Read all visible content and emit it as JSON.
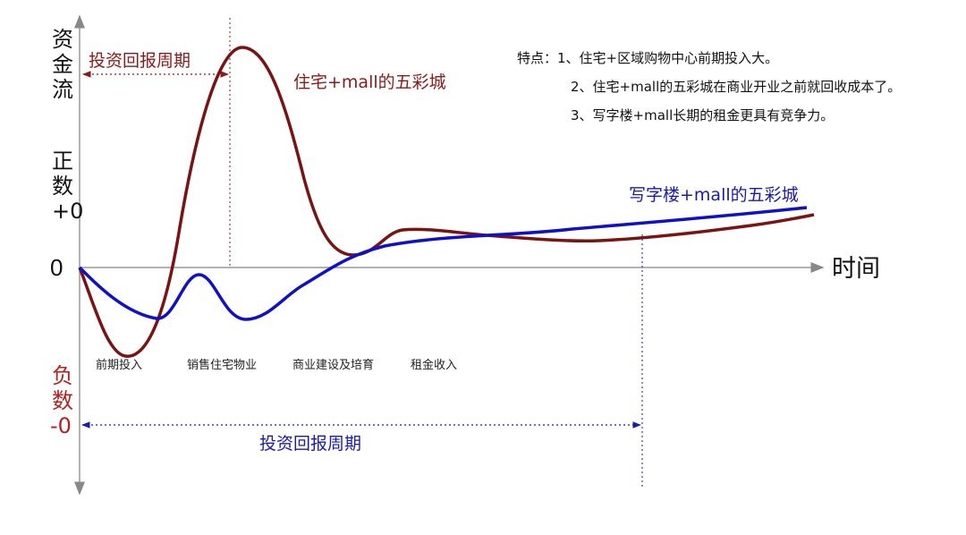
{
  "chart_data": {
    "type": "line",
    "y_axis_label": [
      "资",
      "金",
      "流"
    ],
    "y_positive_label": [
      "正",
      "数",
      "+0"
    ],
    "y_negative_label": [
      "负",
      "数",
      "-0"
    ],
    "zero_label": "0",
    "x_axis_label": "时间",
    "phases": [
      "前期投入",
      "销售住宅物业",
      "商业建设及培育",
      "租金收入"
    ],
    "notes": [
      "特点：1、住宅+区域购物中心前期投入大。",
      "2、住宅+mall的五彩城在商业开业之前就回收成本了。",
      "3、写字楼+mall长期的租金更具有竞争力。"
    ],
    "payback_short_label": "投资回报周期",
    "payback_long_label": "投资回报周期",
    "series": [
      {
        "name": "住宅+mall的五彩城",
        "color": "#7a1414"
      },
      {
        "name": "写字楼+mall的五彩城",
        "color": "#1010c8"
      }
    ]
  }
}
